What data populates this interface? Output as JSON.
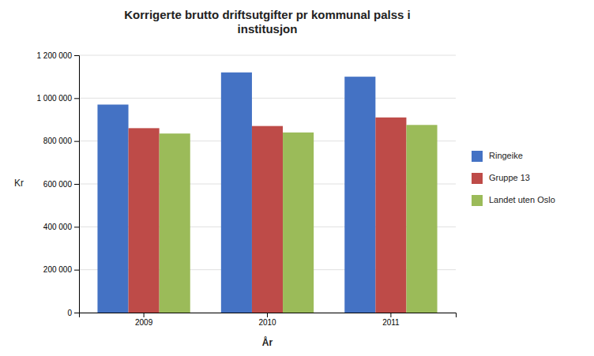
{
  "chart_data": {
    "type": "bar",
    "title": "Korrigerte brutto driftsutgifter pr kommunal  palss i\ninstitusjon",
    "xlabel": "År",
    "ylabel": "Kr",
    "categories": [
      "2009",
      "2010",
      "2011"
    ],
    "series": [
      {
        "name": "Ringeike",
        "values": [
          970000,
          1120000,
          1100000
        ],
        "color": "#4472C4"
      },
      {
        "name": "Gruppe 13",
        "values": [
          860000,
          870000,
          910000
        ],
        "color": "#BE4B48"
      },
      {
        "name": "Landet uten Oslo",
        "values": [
          835000,
          840000,
          875000
        ],
        "color": "#9BBB59"
      }
    ],
    "ylim": [
      0,
      1200000
    ],
    "yticks": [
      0,
      {
        "value": 200000,
        "label": "200 000"
      },
      {
        "value": 400000,
        "label": "400 000"
      },
      {
        "value": 600000,
        "label": "600 000"
      },
      {
        "value": 800000,
        "label": "800 000"
      },
      {
        "value": 1000000,
        "label": "1 000 000"
      },
      {
        "value": 1200000,
        "label": "1 200 000"
      }
    ],
    "grid": true,
    "legend": "right"
  }
}
